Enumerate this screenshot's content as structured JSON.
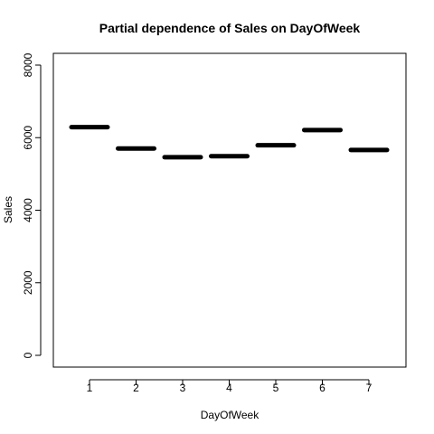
{
  "chart_data": {
    "type": "line",
    "title": "Partial dependence of Sales on DayOfWeek",
    "xlabel": "DayOfWeek",
    "ylabel": "Sales",
    "categories": [
      "1",
      "2",
      "3",
      "4",
      "5",
      "6",
      "7"
    ],
    "values": [
      6290,
      5700,
      5460,
      5490,
      5790,
      6210,
      5660
    ],
    "ylim": [
      0,
      8000
    ],
    "yticks": [
      0,
      2000,
      4000,
      6000,
      8000
    ],
    "grid": false,
    "legend": "none"
  }
}
